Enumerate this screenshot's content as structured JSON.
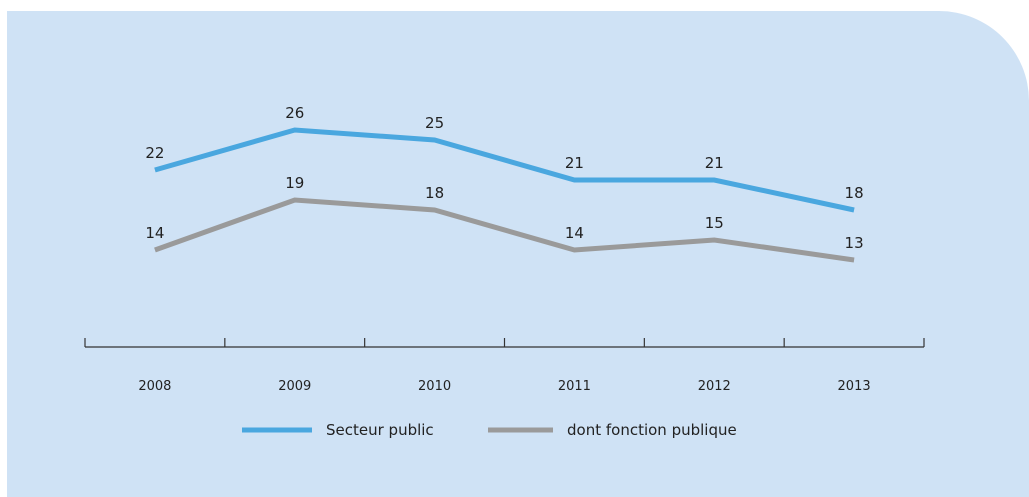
{
  "chart_data": {
    "type": "line",
    "categories": [
      "2008",
      "2009",
      "2010",
      "2011",
      "2012",
      "2013"
    ],
    "series": [
      {
        "name": "Secteur public",
        "values": [
          22,
          26,
          25,
          21,
          21,
          18
        ],
        "color": "#4aa7df"
      },
      {
        "name": "dont fonction publique",
        "values": [
          14,
          19,
          18,
          14,
          15,
          13
        ],
        "color": "#9a9a9a"
      }
    ],
    "title": "",
    "xlabel": "",
    "ylabel": "",
    "ylim": [
      5,
      35
    ],
    "grid": false,
    "legend_position": "bottom",
    "background_color": "#cfe2f5"
  }
}
